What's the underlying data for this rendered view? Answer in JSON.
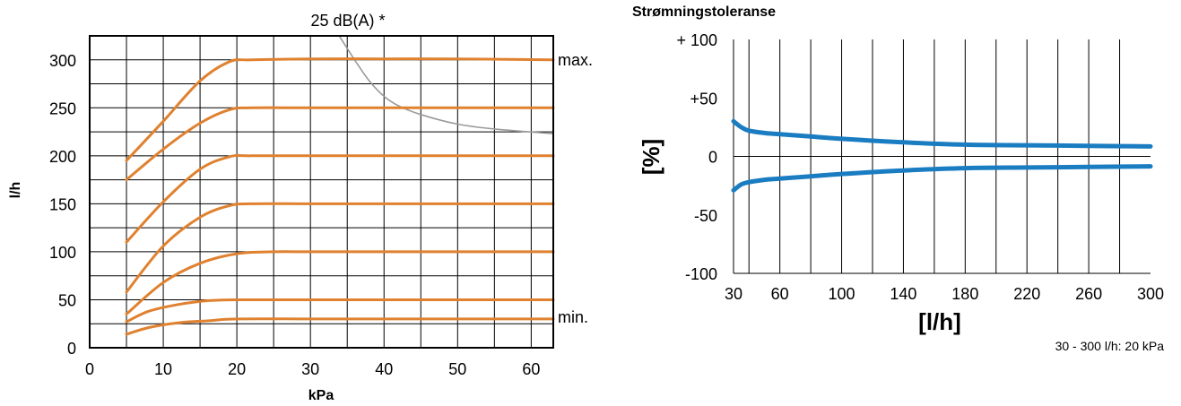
{
  "chart_data": [
    {
      "type": "line",
      "title": "25 dB(A) *",
      "xlabel": "kPa",
      "ylabel": "l/h",
      "xlim": [
        0,
        63
      ],
      "ylim": [
        0,
        325
      ],
      "x_ticks": [
        "0",
        "10",
        "20",
        "30",
        "40",
        "50",
        "60"
      ],
      "y_ticks": [
        "0",
        "50",
        "100",
        "150",
        "200",
        "250",
        "300"
      ],
      "x_tick_values": [
        0,
        10,
        20,
        30,
        40,
        50,
        60
      ],
      "y_tick_values": [
        0,
        50,
        100,
        150,
        200,
        250,
        300
      ],
      "grid": true,
      "line_color": "#e0812f",
      "noise_color": "#9a9a9a",
      "label_max": "max.",
      "label_min": "min.",
      "series": [
        {
          "x": [
            5,
            10,
            15,
            19,
            22,
            30,
            40,
            50,
            63
          ],
          "y": [
            195,
            236,
            278,
            298,
            300,
            301,
            301,
            301,
            300
          ]
        },
        {
          "x": [
            5,
            10,
            15,
            19,
            22,
            30,
            40,
            50,
            63
          ],
          "y": [
            175,
            207,
            234,
            248,
            250,
            250,
            250,
            250,
            250
          ]
        },
        {
          "x": [
            5,
            10,
            15,
            19,
            22,
            30,
            40,
            50,
            63
          ],
          "y": [
            110,
            152,
            186,
            199,
            200,
            200,
            200,
            200,
            200
          ]
        },
        {
          "x": [
            5,
            10,
            15,
            19,
            22,
            30,
            40,
            50,
            63
          ],
          "y": [
            58,
            106,
            136,
            148,
            150,
            150,
            150,
            150,
            150
          ]
        },
        {
          "x": [
            5,
            10,
            15,
            20,
            25,
            30,
            40,
            50,
            63
          ],
          "y": [
            35,
            68,
            88,
            98,
            100,
            100,
            100,
            100,
            100
          ]
        },
        {
          "x": [
            5,
            8,
            12,
            16,
            20,
            30,
            40,
            50,
            63
          ],
          "y": [
            27,
            38,
            45,
            49,
            50,
            50,
            50,
            50,
            50
          ]
        },
        {
          "x": [
            5,
            8,
            12,
            16,
            20,
            30,
            40,
            50,
            63
          ],
          "y": [
            14,
            21,
            26,
            28,
            30,
            30,
            30,
            30,
            30
          ]
        }
      ],
      "noise_curve": {
        "x": [
          33.5,
          36,
          38,
          40,
          42,
          45,
          50,
          55,
          63
        ],
        "y": [
          330,
          300,
          278,
          262,
          252,
          243,
          233,
          228,
          223
        ]
      }
    },
    {
      "type": "line",
      "title": "Strømningstoleranse",
      "xlabel": "[l/h]",
      "ylabel": "[%]",
      "xlim": [
        30,
        300
      ],
      "ylim": [
        -100,
        100
      ],
      "x_ticks": [
        "30",
        "60",
        "100",
        "140",
        "180",
        "220",
        "260",
        "300"
      ],
      "x_tick_values": [
        30,
        60,
        100,
        140,
        180,
        220,
        260,
        300
      ],
      "y_ticks": [
        "+ 100",
        "+50",
        "0",
        "-50",
        "-100"
      ],
      "y_tick_values": [
        100,
        50,
        0,
        -50,
        -100
      ],
      "vertical_grid": [
        40,
        60,
        80,
        100,
        120,
        140,
        160,
        180,
        200,
        220,
        240,
        260,
        280
      ],
      "grid": true,
      "line_color": "#1a7cc1",
      "series": [
        {
          "x": [
            30,
            35,
            40,
            50,
            60,
            80,
            100,
            140,
            180,
            220,
            260,
            300
          ],
          "y": [
            30,
            25,
            22,
            20,
            19,
            17,
            15,
            12,
            10,
            9.5,
            9,
            8.5
          ]
        },
        {
          "x": [
            30,
            35,
            40,
            50,
            60,
            80,
            100,
            140,
            180,
            220,
            260,
            300
          ],
          "y": [
            -29,
            -24,
            -22,
            -20,
            -19,
            -17,
            -15,
            -12,
            -10,
            -9.5,
            -9,
            -8.5
          ]
        }
      ],
      "note": "30 - 300 l/h: 20 kPa"
    }
  ]
}
